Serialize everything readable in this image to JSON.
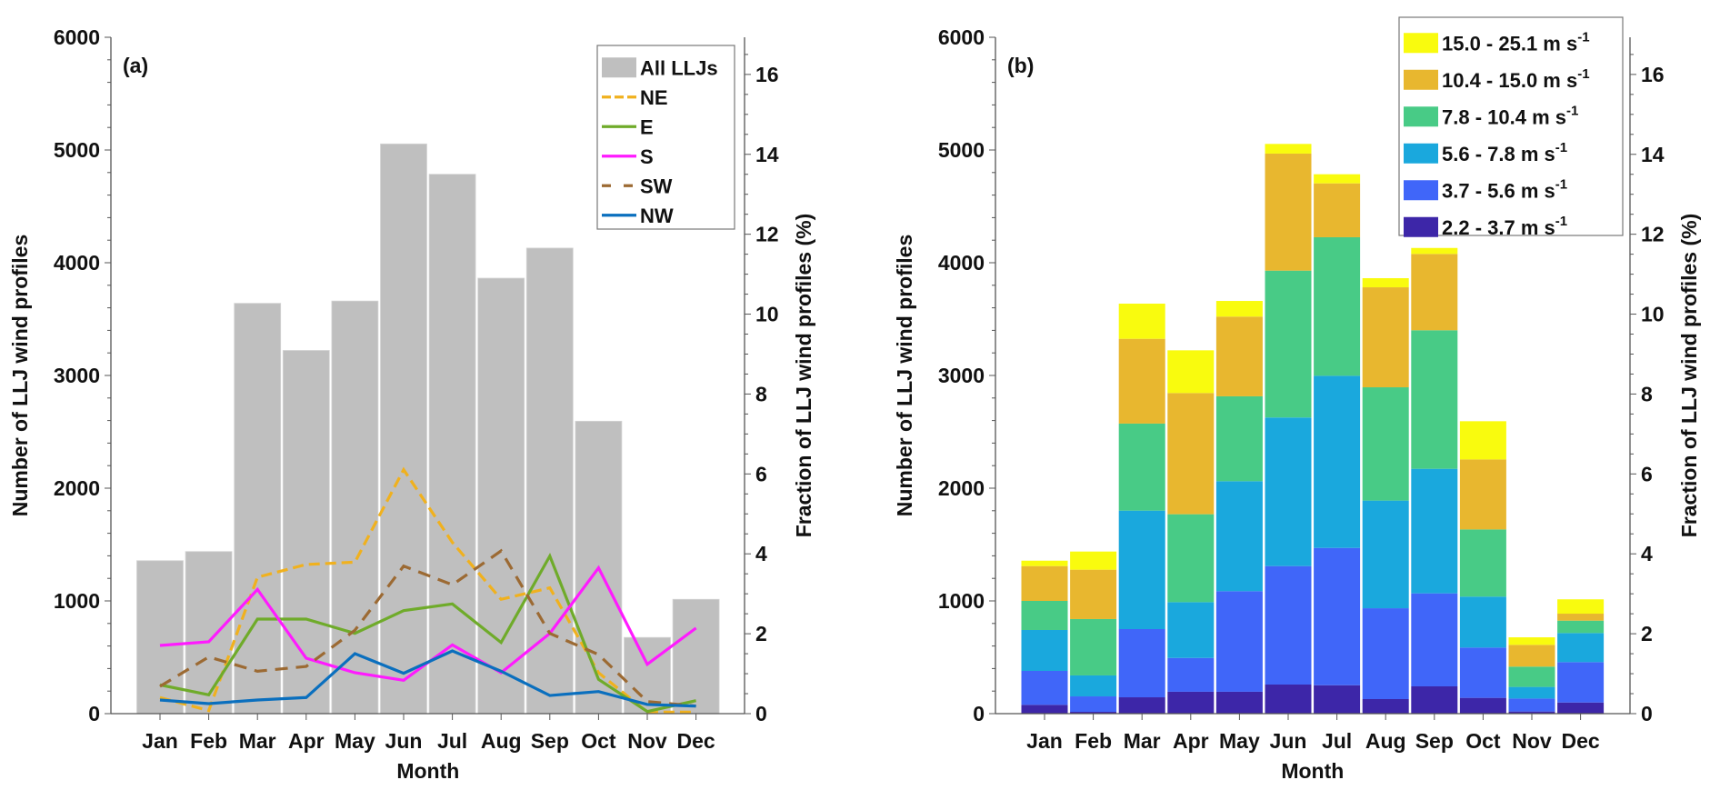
{
  "chart_data": [
    {
      "panel": "(a)",
      "type": "bar",
      "categories": [
        "Jan",
        "Feb",
        "Mar",
        "Apr",
        "May",
        "Jun",
        "Jul",
        "Aug",
        "Sep",
        "Oct",
        "Nov",
        "Dec"
      ],
      "xlabel": "Month",
      "ylabel": "Number of LLJ wind profiles",
      "ylabel_right": "Fraction of LLJ wind profiles (%)",
      "ylim": [
        0,
        6000
      ],
      "ylim_right": [
        0,
        16.93
      ],
      "yticks": [
        0,
        1000,
        2000,
        3000,
        4000,
        5000,
        6000
      ],
      "yticks_right": [
        0,
        2,
        4,
        6,
        8,
        10,
        12,
        14,
        16
      ],
      "grid": false,
      "legend_position": "top-right",
      "bars": {
        "name": "All LLJs",
        "color": "#bfbfbf",
        "values": [
          1357,
          1438,
          3640,
          3222,
          3660,
          5054,
          4785,
          3863,
          4130,
          2594,
          676,
          1014
        ]
      },
      "series": [
        {
          "name": "NE",
          "type": "line",
          "style": "dash-dot",
          "color": "#f0b11e",
          "values": [
            143,
            27,
            1210,
            1323,
            1344,
            2164,
            1519,
            1014,
            1116,
            363,
            13,
            13
          ]
        },
        {
          "name": "E",
          "type": "line",
          "style": "solid",
          "color": "#6fab2a",
          "values": [
            255,
            167,
            839,
            839,
            712,
            914,
            973,
            631,
            1398,
            304,
            19,
            115
          ]
        },
        {
          "name": "S",
          "type": "line",
          "style": "solid",
          "color": "#ff1aff",
          "values": [
            605,
            637,
            1102,
            492,
            363,
            296,
            610,
            363,
            712,
            1293,
            438,
            759
          ]
        },
        {
          "name": "SW",
          "type": "line",
          "style": "dashed",
          "color": "#9c6a33",
          "values": [
            242,
            503,
            376,
            419,
            740,
            1309,
            1143,
            1444,
            712,
            524,
            107,
            67
          ]
        },
        {
          "name": "NW",
          "type": "line",
          "style": "solid",
          "color": "#0a6fbe",
          "values": [
            121,
            89,
            121,
            143,
            532,
            358,
            556,
            376,
            161,
            196,
            81,
            67
          ]
        }
      ]
    },
    {
      "panel": "(b)",
      "type": "bar",
      "stacked": true,
      "categories": [
        "Jan",
        "Feb",
        "Mar",
        "Apr",
        "May",
        "Jun",
        "Jul",
        "Aug",
        "Sep",
        "Oct",
        "Nov",
        "Dec"
      ],
      "xlabel": "Month",
      "ylabel": "Number of LLJ wind profiles",
      "ylabel_right": "Fraction of LLJ wind profiles (%)",
      "ylim": [
        0,
        6000
      ],
      "ylim_right": [
        0,
        16.93
      ],
      "yticks": [
        0,
        1000,
        2000,
        3000,
        4000,
        5000,
        6000
      ],
      "yticks_right": [
        0,
        2,
        4,
        6,
        8,
        10,
        12,
        14,
        16
      ],
      "grid": false,
      "legend_position": "top-right",
      "series": [
        {
          "name": "2.2 - 3.7 m s",
          "sup": "-1",
          "color": "#3d26a8",
          "values": [
            78,
            16,
            145,
            194,
            194,
            258,
            252,
            129,
            242,
            140,
            19,
            99
          ]
        },
        {
          "name": "3.7 - 5.6 m s",
          "sup": "-1",
          "color": "#4066f9",
          "values": [
            301,
            137,
            605,
            300,
            892,
            1051,
            1218,
            806,
            825,
            446,
            115,
            358
          ]
        },
        {
          "name": "5.6 - 7.8 m s",
          "sup": "-1",
          "color": "#1aa8dd",
          "values": [
            363,
            186,
            1051,
            495,
            976,
            1318,
            1527,
            955,
            1105,
            452,
            103,
            258
          ]
        },
        {
          "name": "7.8 - 10.4 m s",
          "sup": "-1",
          "color": "#48cb86",
          "values": [
            258,
            500,
            772,
            780,
            753,
            1303,
            1229,
            1005,
            1229,
            596,
            180,
            110
          ]
        },
        {
          "name": "10.4 - 15.0 m s",
          "sup": "-1",
          "color": "#e8b72f",
          "values": [
            309,
            438,
            752,
            1075,
            707,
            1038,
            478,
            887,
            677,
            621,
            193,
            62
          ]
        },
        {
          "name": "15.0 - 25.1 m s",
          "sup": "-1",
          "color": "#f9fb0e",
          "values": [
            48,
            161,
            312,
            379,
            139,
            86,
            81,
            81,
            53,
            339,
            67,
            127
          ]
        }
      ]
    }
  ]
}
